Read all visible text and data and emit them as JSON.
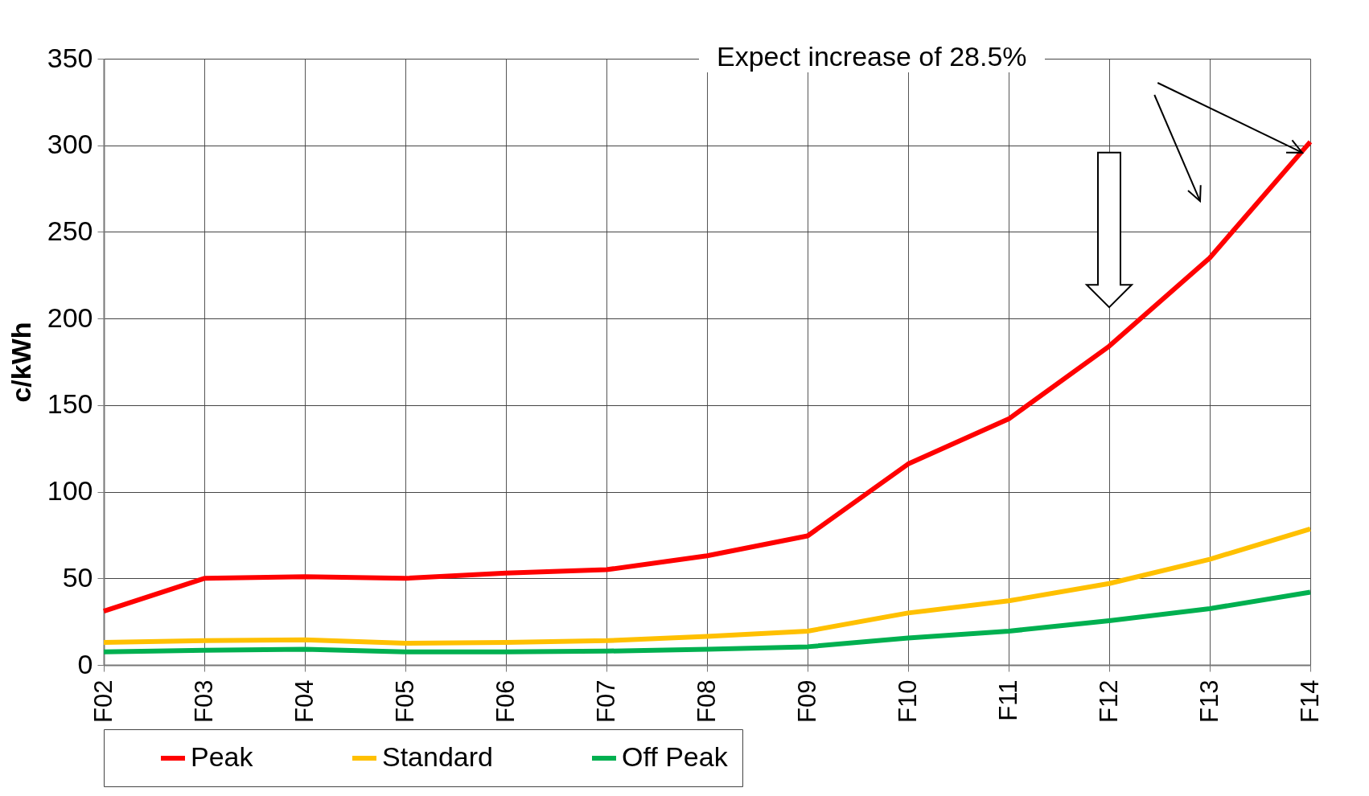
{
  "chart_data": {
    "type": "line",
    "ylabel": "c/kWh",
    "categories": [
      "F02",
      "F03",
      "F04",
      "F05",
      "F06",
      "F07",
      "F08",
      "F09",
      "F10",
      "F11",
      "F12",
      "F13",
      "F14"
    ],
    "series": [
      {
        "name": "Peak",
        "color": "#ff0000",
        "values": [
          31,
          50,
          51,
          50,
          53,
          55,
          63,
          74.5,
          116,
          142,
          184,
          235,
          302
        ]
      },
      {
        "name": "Standard",
        "color": "#ffc000",
        "values": [
          13,
          14,
          14.5,
          12.5,
          13,
          14,
          16.5,
          19.5,
          30,
          37,
          47,
          61,
          78.5
        ]
      },
      {
        "name": "Off Peak",
        "color": "#00b050",
        "values": [
          7.5,
          8.5,
          9,
          7.5,
          7.5,
          8,
          9,
          10.5,
          15.5,
          19.5,
          25.5,
          32.5,
          42
        ]
      }
    ],
    "ylim": [
      0,
      350
    ],
    "yticks": [
      0,
      50,
      100,
      150,
      200,
      250,
      300,
      350
    ],
    "grid": true,
    "legend": "bottom",
    "marker": "none",
    "line_style": "solid",
    "annotations": [
      "Expect increase of 28.5%"
    ]
  }
}
